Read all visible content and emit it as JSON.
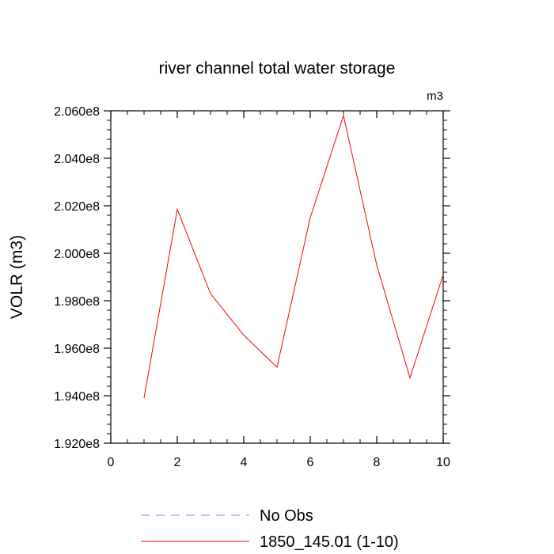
{
  "chart_data": {
    "type": "line",
    "title": "river channel total water storage",
    "units_label": "m3",
    "ylabel": "VOLR  (m3)",
    "xlabel": "",
    "xlim": [
      0,
      10
    ],
    "ylim": [
      192000000,
      206000000
    ],
    "x_ticks": [
      0,
      2,
      4,
      6,
      8,
      10
    ],
    "x_tick_labels": [
      "0",
      "2",
      "4",
      "6",
      "8",
      "10"
    ],
    "y_ticks": [
      192000000,
      194000000,
      196000000,
      198000000,
      200000000,
      202000000,
      204000000,
      206000000
    ],
    "y_tick_labels": [
      "1.920e8",
      "1.940e8",
      "1.960e8",
      "1.980e8",
      "2.000e8",
      "2.020e8",
      "2.040e8",
      "2.060e8"
    ],
    "grid": false,
    "legend_position": "bottom",
    "series": [
      {
        "name": "1850_145.01 (1-10)",
        "color": "#ff0000",
        "dashed": false,
        "x": [
          1,
          2,
          3,
          4,
          5,
          6,
          7,
          8,
          9,
          10
        ],
        "y": [
          193900000,
          201850000,
          198300000,
          196550000,
          195200000,
          201500000,
          205800000,
          199500000,
          194750000,
          199100000
        ]
      }
    ],
    "legend": [
      {
        "label": "No Obs",
        "color": "#8080ff",
        "dashed": true
      },
      {
        "label": "1850_145.01 (1-10)",
        "color": "#ff0000",
        "dashed": false
      }
    ]
  }
}
